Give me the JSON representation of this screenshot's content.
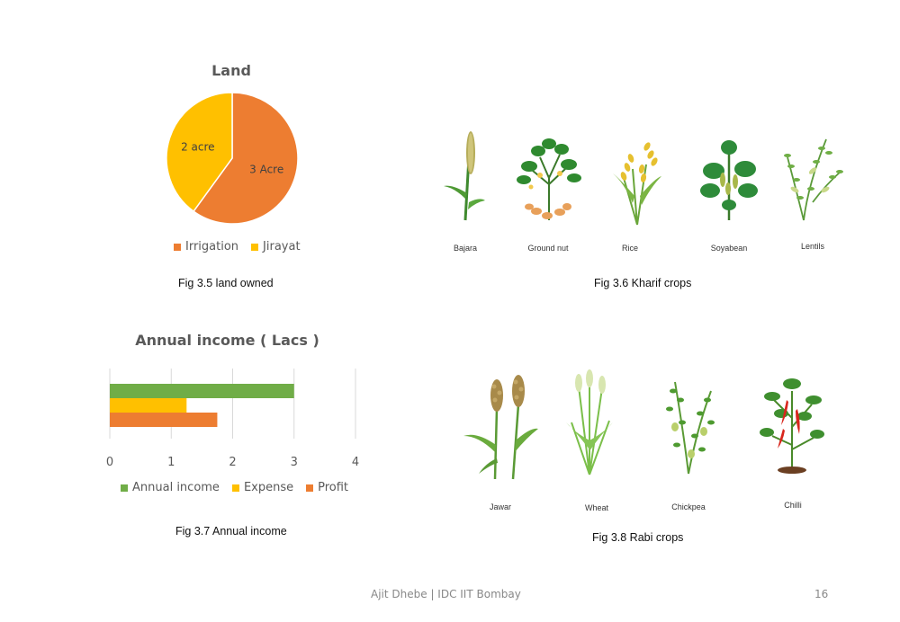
{
  "land_chart": {
    "title": "Land",
    "legend": [
      {
        "label": "Irrigation",
        "color": "#ED7D31"
      },
      {
        "label": "Jirayat",
        "color": "#FFC000"
      }
    ],
    "caption": "Fig 3.5 land owned"
  },
  "income_chart": {
    "title": "Annual income ( Lacs )",
    "legend": [
      {
        "label": "Annual income",
        "color": "#70AD47"
      },
      {
        "label": "Expense",
        "color": "#FFC000"
      },
      {
        "label": "Profit",
        "color": "#ED7D31"
      }
    ],
    "caption": "Fig 3.7 Annual income"
  },
  "chart_data": [
    {
      "type": "pie",
      "title": "Land",
      "categories": [
        "Irrigation",
        "Jirayat"
      ],
      "values": [
        3,
        2
      ],
      "data_labels": [
        "3 Acre",
        "2 acre"
      ],
      "colors": [
        "#ED7D31",
        "#FFC000"
      ],
      "legend_position": "bottom"
    },
    {
      "type": "bar",
      "orientation": "horizontal",
      "title": "Annual income ( Lacs )",
      "series": [
        {
          "name": "Annual income",
          "values": [
            3
          ],
          "color": "#70AD47"
        },
        {
          "name": "Expense",
          "values": [
            1.25
          ],
          "color": "#FFC000"
        },
        {
          "name": "Profit",
          "values": [
            1.75
          ],
          "color": "#ED7D31"
        }
      ],
      "xlim": [
        0,
        4
      ],
      "xticks": [
        "0",
        "1",
        "2",
        "3",
        "4"
      ],
      "grid": true,
      "legend_position": "bottom"
    }
  ],
  "kharif": {
    "crops": [
      "Bajara",
      "Ground nut",
      "Rice",
      "Soyabean",
      "Lentils"
    ],
    "caption": "Fig 3.6 Kharif crops"
  },
  "rabi": {
    "crops": [
      "Jawar",
      "Wheat",
      "Chickpea",
      "Chilli"
    ],
    "caption": "Fig 3.8 Rabi crops"
  },
  "footer": {
    "text": "Ajit Dhebe | IDC IIT Bombay",
    "page_number": "16"
  }
}
